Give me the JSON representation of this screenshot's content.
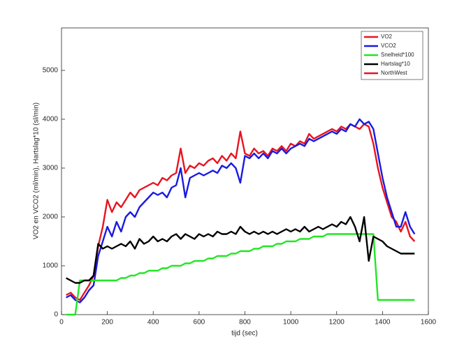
{
  "chart_data": {
    "type": "line",
    "xlabel": "tijd (sec)",
    "ylabel": "VO2 en VCO2 (ml/min), Hartslag*10 (sl/min)",
    "x": [
      20,
      40,
      60,
      80,
      100,
      120,
      140,
      160,
      180,
      200,
      220,
      240,
      260,
      280,
      300,
      320,
      340,
      360,
      380,
      400,
      420,
      440,
      460,
      480,
      500,
      520,
      540,
      560,
      580,
      600,
      620,
      640,
      660,
      680,
      700,
      720,
      740,
      760,
      780,
      800,
      820,
      840,
      860,
      880,
      900,
      920,
      940,
      960,
      980,
      1000,
      1020,
      1040,
      1060,
      1080,
      1100,
      1120,
      1140,
      1160,
      1180,
      1200,
      1220,
      1240,
      1260,
      1280,
      1300,
      1320,
      1340,
      1360,
      1380,
      1400,
      1420,
      1440,
      1460,
      1480,
      1500,
      1520,
      1540
    ],
    "series": [
      {
        "name": "VO2",
        "color": "#e8141e",
        "values": [
          400,
          450,
          350,
          300,
          450,
          600,
          800,
          1400,
          1800,
          2350,
          2100,
          2300,
          2200,
          2350,
          2500,
          2400,
          2550,
          2600,
          2650,
          2700,
          2650,
          2800,
          2750,
          2850,
          2900,
          3400,
          2900,
          3050,
          3000,
          3100,
          3050,
          3150,
          3200,
          3100,
          3250,
          3150,
          3300,
          3200,
          3750,
          3300,
          3250,
          3400,
          3300,
          3350,
          3250,
          3400,
          3350,
          3450,
          3350,
          3500,
          3450,
          3550,
          3500,
          3700,
          3600,
          3650,
          3700,
          3750,
          3800,
          3750,
          3850,
          3800,
          3900,
          3850,
          3800,
          3900,
          3850,
          3500,
          3000,
          2600,
          2300,
          2000,
          1900,
          1700,
          1900,
          1600,
          1500
        ]
      },
      {
        "name": "VCO2",
        "color": "#1a1ae0",
        "values": [
          350,
          400,
          300,
          250,
          350,
          500,
          600,
          1200,
          1500,
          1800,
          1600,
          1900,
          1700,
          2000,
          2100,
          2000,
          2200,
          2300,
          2400,
          2500,
          2450,
          2500,
          2400,
          2600,
          2650,
          3000,
          2400,
          2800,
          2850,
          2900,
          2850,
          2900,
          2950,
          2900,
          3050,
          3000,
          3100,
          3000,
          2700,
          3250,
          3200,
          3300,
          3200,
          3300,
          3200,
          3350,
          3300,
          3400,
          3300,
          3400,
          3450,
          3500,
          3450,
          3600,
          3550,
          3600,
          3650,
          3700,
          3750,
          3700,
          3800,
          3750,
          3900,
          3850,
          4000,
          3900,
          3950,
          3800,
          3300,
          2800,
          2400,
          2100,
          1800,
          1800,
          2100,
          1800,
          1650
        ]
      },
      {
        "name": "Snelheid*100",
        "color": "#22e622",
        "values": [
          0,
          0,
          0,
          700,
          700,
          700,
          700,
          700,
          700,
          700,
          700,
          700,
          750,
          750,
          800,
          800,
          850,
          850,
          900,
          900,
          900,
          950,
          950,
          1000,
          1000,
          1000,
          1050,
          1050,
          1100,
          1100,
          1100,
          1150,
          1150,
          1200,
          1200,
          1200,
          1250,
          1250,
          1300,
          1300,
          1300,
          1350,
          1350,
          1400,
          1400,
          1400,
          1450,
          1450,
          1500,
          1500,
          1500,
          1550,
          1550,
          1550,
          1600,
          1600,
          1600,
          1650,
          1650,
          1650,
          1650,
          1650,
          1650,
          1650,
          1650,
          1650,
          1650,
          1650,
          300,
          300,
          300,
          300,
          300,
          300,
          300,
          300,
          300
        ]
      },
      {
        "name": "Hartslag*10",
        "color": "#000000",
        "values": [
          750,
          700,
          650,
          650,
          700,
          700,
          800,
          1450,
          1350,
          1400,
          1350,
          1400,
          1450,
          1400,
          1500,
          1350,
          1550,
          1450,
          1500,
          1600,
          1500,
          1550,
          1500,
          1600,
          1650,
          1550,
          1650,
          1600,
          1550,
          1650,
          1600,
          1650,
          1600,
          1700,
          1650,
          1650,
          1700,
          1650,
          1800,
          1700,
          1650,
          1700,
          1650,
          1700,
          1650,
          1700,
          1650,
          1700,
          1750,
          1700,
          1750,
          1700,
          1800,
          1700,
          1750,
          1800,
          1750,
          1800,
          1850,
          1800,
          1900,
          1850,
          2000,
          1800,
          1500,
          2000,
          1100,
          1600,
          1550,
          1500,
          1400,
          1350,
          1300,
          1250,
          1250,
          1250,
          1250
        ]
      },
      {
        "name": "NorthWest",
        "color": "#e8141e",
        "values": [
          null,
          null,
          null,
          null,
          null,
          null,
          null,
          null,
          null,
          null,
          null,
          null,
          null,
          null,
          null,
          null,
          null,
          null,
          null,
          null,
          null,
          null,
          null,
          null,
          null,
          null,
          null,
          null,
          null,
          null,
          null,
          null,
          null,
          null,
          null,
          null,
          null,
          null,
          null,
          null,
          null,
          null,
          null,
          null,
          null,
          null,
          null,
          null,
          null,
          null,
          null,
          null,
          null,
          null,
          null,
          null,
          null,
          null,
          null,
          null,
          null,
          null,
          null,
          null,
          null,
          null,
          null,
          null,
          null,
          null,
          null,
          null,
          null,
          null,
          null,
          null,
          null
        ]
      }
    ],
    "xlim": [
      0,
      1600
    ],
    "xticks": [
      0,
      200,
      400,
      600,
      800,
      1000,
      1200,
      1400,
      1600
    ],
    "ylim": [
      0,
      5870
    ],
    "yticks": [
      0,
      1000,
      2000,
      3000,
      4000,
      5000
    ],
    "grid": false,
    "legend": "northeast"
  }
}
